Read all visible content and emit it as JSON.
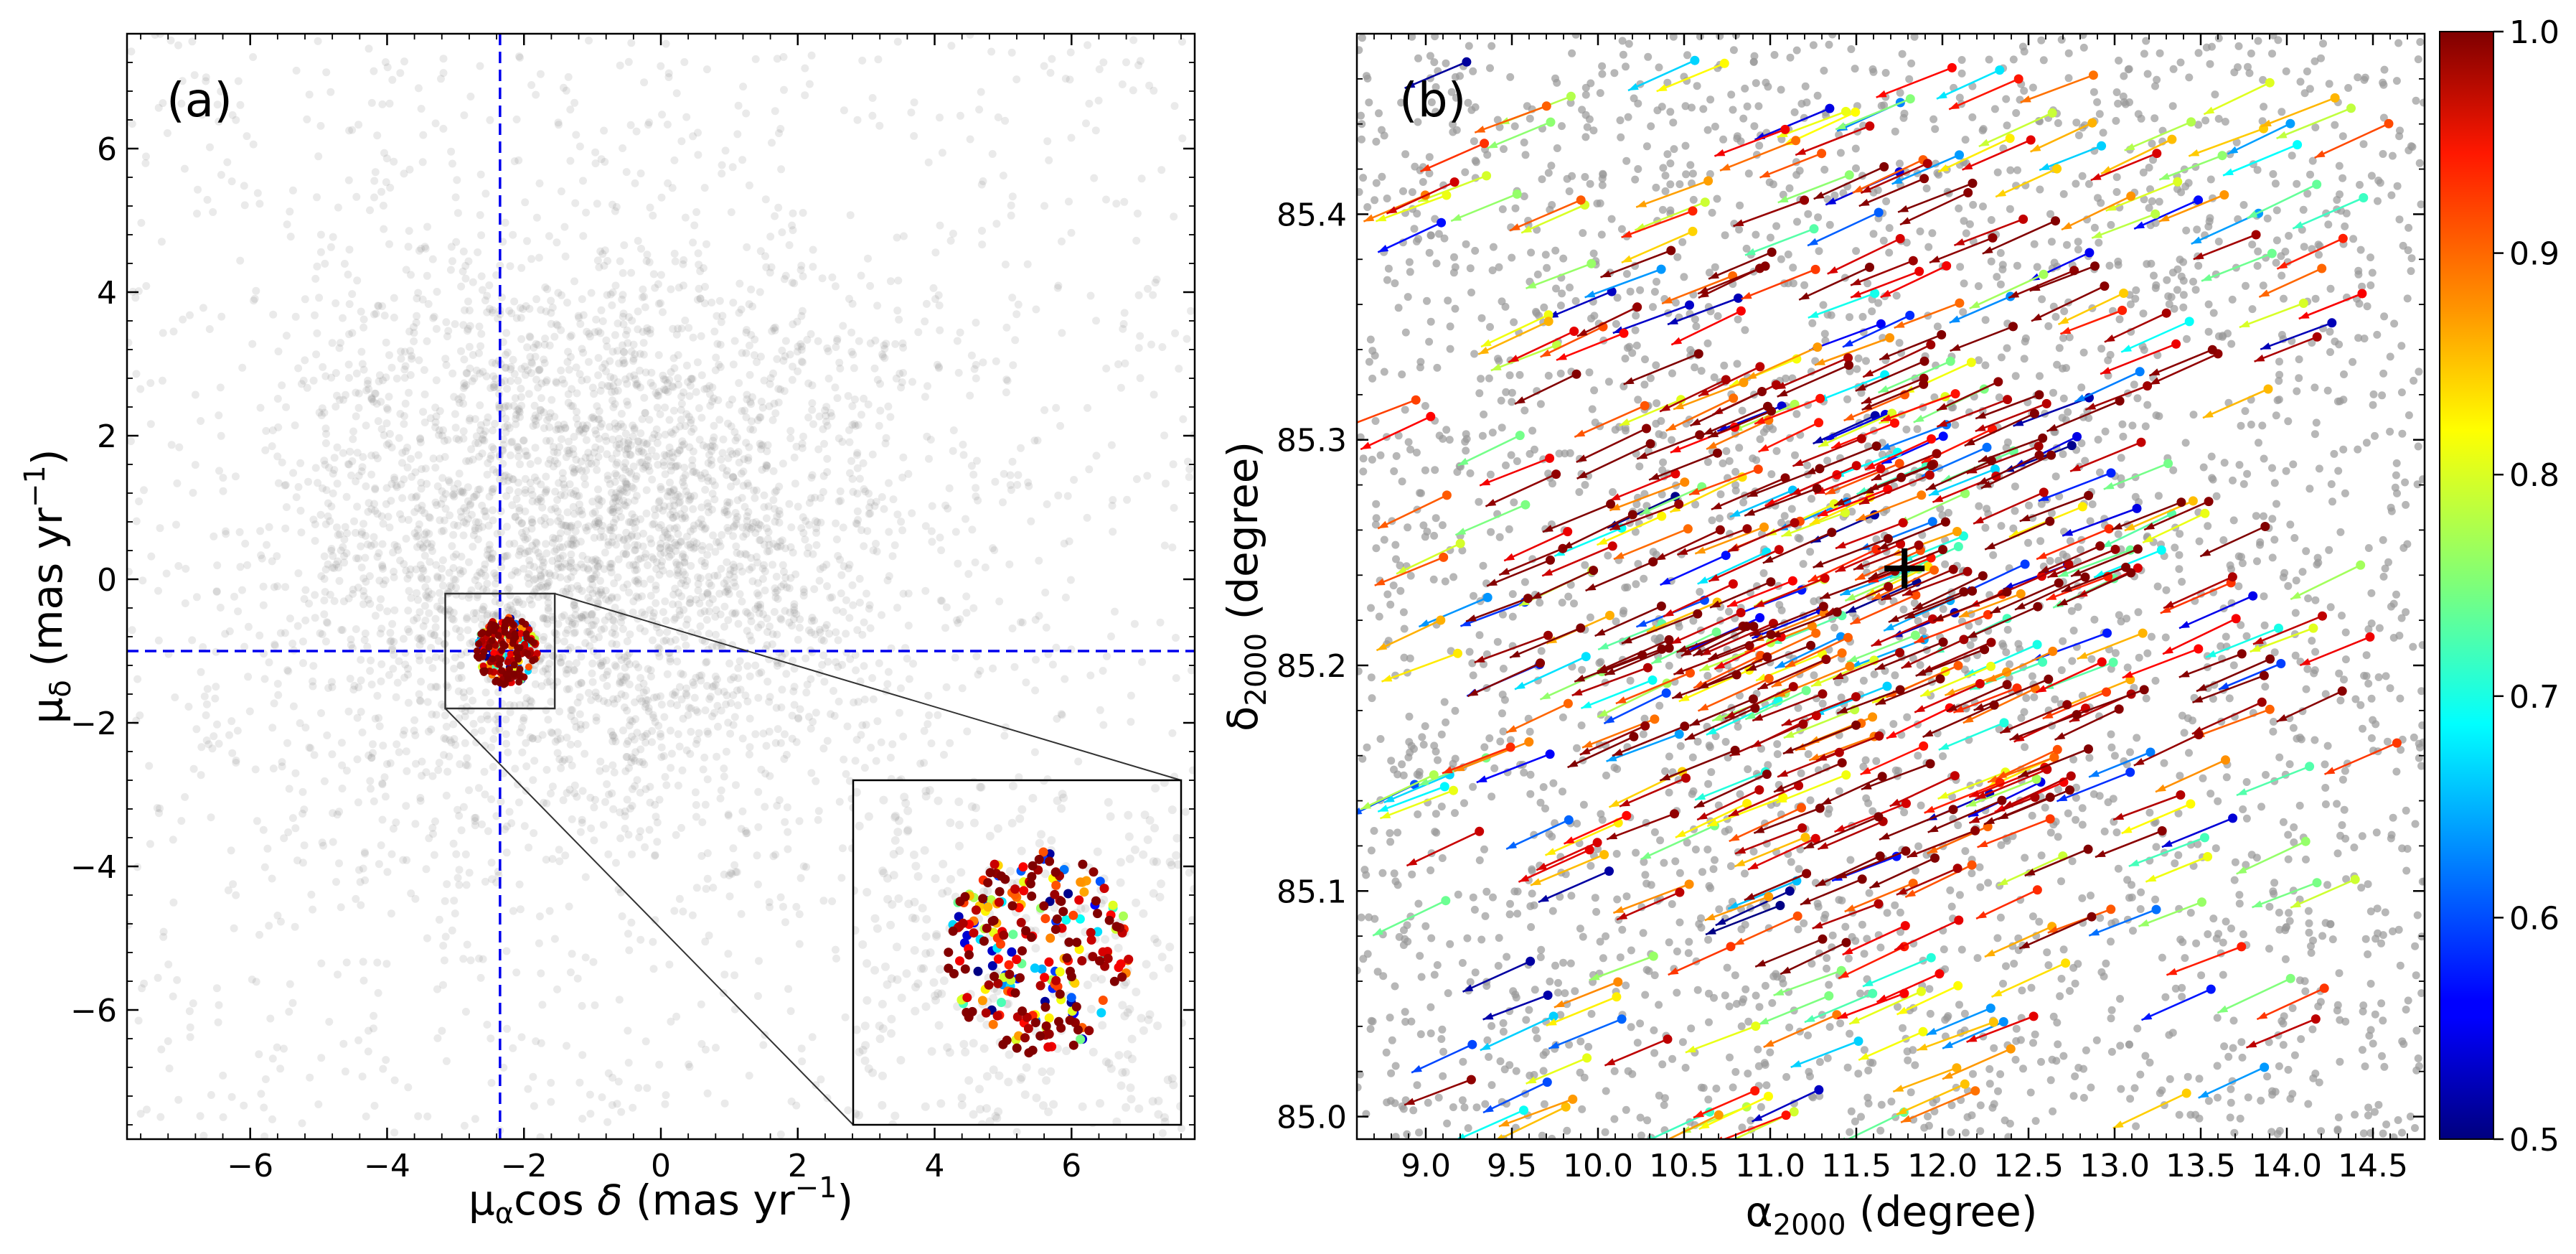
{
  "chart_data": [
    {
      "type": "scatter",
      "panel_label": "(a)",
      "xlabel": "μαcos δ (mas yr−1)",
      "ylabel": "μδ (mas yr−1)",
      "xlim": [
        -7.8,
        7.8
      ],
      "ylim": [
        -7.8,
        7.6
      ],
      "x_ticks": [
        -6,
        -4,
        -2,
        0,
        2,
        4,
        6
      ],
      "x_tick_labels": [
        "−6",
        "−4",
        "−2",
        "0",
        "2",
        "4",
        "6"
      ],
      "y_ticks": [
        -6,
        -4,
        -2,
        0,
        2,
        4,
        6
      ],
      "y_tick_labels": [
        "−6",
        "−4",
        "−2",
        "0",
        "2",
        "4",
        "6"
      ],
      "reference_lines": {
        "x": -2.35,
        "y": -1.0,
        "color": "#0000ee",
        "style": "dashed"
      },
      "field_stars": {
        "color": "#888888",
        "center": [
          -1.0,
          0.6
        ],
        "spread": [
          2.4,
          2.2
        ],
        "count": 4500
      },
      "cluster": {
        "center": [
          -2.25,
          -1.0
        ],
        "radius": 0.45,
        "count": 260,
        "colormap": "jet",
        "prob_range": [
          0.5,
          1.0
        ]
      },
      "zoom_box": {
        "x": [
          -3.15,
          -1.55
        ],
        "y": [
          -1.8,
          -0.2
        ]
      },
      "inset_note": "magnified view of zoom box"
    },
    {
      "type": "quiver",
      "panel_label": "(b)",
      "xlabel": "α2000 (degree)",
      "ylabel": "δ2000 (degree)",
      "xlim": [
        8.6,
        14.8
      ],
      "ylim": [
        84.99,
        85.48
      ],
      "x_ticks": [
        9.0,
        9.5,
        10.0,
        10.5,
        11.0,
        11.5,
        12.0,
        12.5,
        13.0,
        13.5,
        14.0,
        14.5
      ],
      "x_tick_labels": [
        "9.0",
        "9.5",
        "10.0",
        "10.5",
        "11.0",
        "11.5",
        "12.0",
        "12.5",
        "13.0",
        "13.5",
        "14.0",
        "14.5"
      ],
      "y_ticks": [
        85.0,
        85.1,
        85.2,
        85.3,
        85.4
      ],
      "y_tick_labels": [
        "85.0",
        "85.1",
        "85.2",
        "85.3",
        "85.4"
      ],
      "cluster_center": {
        "ra": 11.78,
        "dec": 85.243,
        "marker": "+"
      },
      "field_stars": {
        "color": "#999999",
        "count": 2800
      },
      "members": {
        "count": 620,
        "prob_range": [
          0.5,
          1.0
        ],
        "vector_direction": "toward lower-left"
      },
      "colorbar": {
        "colormap": "jet",
        "range": [
          0.5,
          1.0
        ],
        "ticks": [
          0.5,
          0.6,
          0.7,
          0.8,
          0.9,
          1.0
        ],
        "tick_labels": [
          "0.5",
          "0.6",
          "0.7",
          "0.8",
          "0.9",
          "1.0"
        ]
      }
    }
  ]
}
